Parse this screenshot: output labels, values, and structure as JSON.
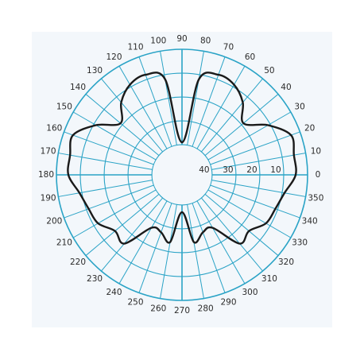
{
  "chart_data": {
    "type": "polar-line",
    "title": "",
    "angle_unit": "degrees",
    "angle_ticks": [
      "0",
      "10",
      "20",
      "30",
      "40",
      "50",
      "60",
      "70",
      "80",
      "90",
      "100",
      "110",
      "120",
      "130",
      "140",
      "150",
      "160",
      "170",
      "180",
      "190",
      "200",
      "210",
      "220",
      "230",
      "240",
      "250",
      "260",
      "270",
      "280",
      "290",
      "300",
      "310",
      "320",
      "330",
      "340",
      "350"
    ],
    "radial_ticks": [
      "10",
      "20",
      "30",
      "40"
    ],
    "radial_range": [
      40,
      0
    ],
    "grid": true,
    "curve_color": "#1a1a1a",
    "grid_color": "#2aa3c6",
    "series": [
      {
        "angles": [
          0,
          10,
          20,
          30,
          40,
          50,
          60,
          70,
          80,
          90,
          100,
          110,
          120,
          130,
          140,
          150,
          160,
          170,
          180,
          190,
          200,
          210,
          220,
          230,
          240,
          250,
          260,
          270,
          280,
          290,
          300,
          310,
          320,
          330,
          340,
          350
        ],
        "values": [
          5,
          5,
          4,
          11,
          19,
          13,
          9,
          8,
          12,
          39,
          12,
          8,
          9,
          13,
          19,
          11,
          4,
          5,
          5,
          9,
          11,
          12,
          16,
          15,
          27,
          27,
          24,
          37,
          24,
          27,
          27,
          15,
          16,
          12,
          11,
          9
        ]
      }
    ]
  }
}
